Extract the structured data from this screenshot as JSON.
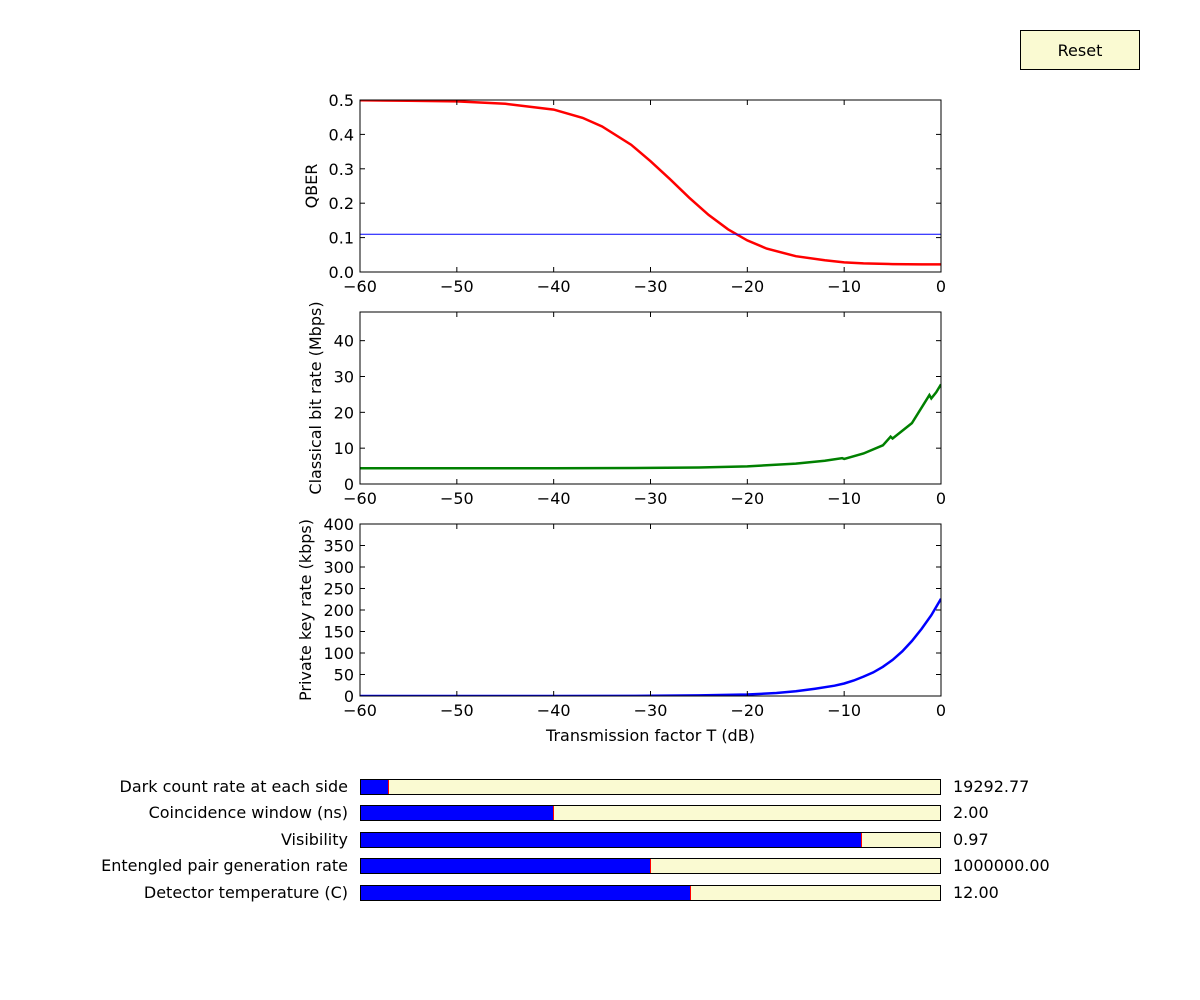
{
  "reset": {
    "label": "Reset"
  },
  "chart_data": [
    {
      "type": "line",
      "ylabel": "QBER",
      "xlim": [
        -60,
        0
      ],
      "ylim": [
        0,
        0.5
      ],
      "xticks": [
        -60,
        -50,
        -40,
        -30,
        -20,
        -10,
        0
      ],
      "yticks": [
        0.0,
        0.1,
        0.2,
        0.3,
        0.4,
        0.5
      ],
      "ytick_labels": [
        "0.0",
        "0.1",
        "0.2",
        "0.3",
        "0.4",
        "0.5"
      ],
      "series": [
        {
          "color": "#ff0000",
          "x": [
            -60,
            -55,
            -50,
            -45,
            -40,
            -37,
            -35,
            -32,
            -30,
            -28,
            -26,
            -24,
            -22,
            -20,
            -18,
            -15,
            -12,
            -10,
            -8,
            -5,
            -2,
            0
          ],
          "y": [
            0.499,
            0.498,
            0.496,
            0.489,
            0.472,
            0.448,
            0.423,
            0.37,
            0.322,
            0.27,
            0.216,
            0.166,
            0.124,
            0.092,
            0.068,
            0.046,
            0.034,
            0.028,
            0.025,
            0.023,
            0.022,
            0.022
          ]
        },
        {
          "color": "#0000ff",
          "x": [
            -60,
            0
          ],
          "y": [
            0.11,
            0.11
          ]
        }
      ]
    },
    {
      "type": "line",
      "ylabel": "Classical bit rate (Mbps)",
      "xlim": [
        -60,
        0
      ],
      "ylim": [
        0,
        48
      ],
      "xticks": [
        -60,
        -50,
        -40,
        -30,
        -20,
        -10,
        0
      ],
      "yticks": [
        0,
        10,
        20,
        30,
        40
      ],
      "ytick_labels": [
        "0",
        "10",
        "20",
        "30",
        "40"
      ],
      "series": [
        {
          "color": "#008000",
          "x": [
            -60,
            -50,
            -40,
            -30,
            -25,
            -20,
            -15,
            -12,
            -10.2,
            -10,
            -8,
            -6,
            -5.2,
            -5,
            -3,
            -1.2,
            -1,
            -0.5,
            0
          ],
          "y": [
            4.4,
            4.4,
            4.4,
            4.5,
            4.6,
            4.9,
            5.7,
            6.5,
            7.2,
            7.0,
            8.5,
            10.8,
            13.2,
            12.7,
            17.0,
            24.8,
            23.9,
            25.6,
            27.8
          ]
        }
      ]
    },
    {
      "type": "line",
      "ylabel": "Private key rate (kbps)",
      "xlabel": "Transmission factor T (dB)",
      "xlim": [
        -60,
        0
      ],
      "ylim": [
        0,
        400
      ],
      "xticks": [
        -60,
        -50,
        -40,
        -30,
        -20,
        -10,
        0
      ],
      "yticks": [
        0,
        50,
        100,
        150,
        200,
        250,
        300,
        350,
        400
      ],
      "ytick_labels": [
        "0",
        "50",
        "100",
        "150",
        "200",
        "250",
        "300",
        "350",
        "400"
      ],
      "series": [
        {
          "color": "#0000ff",
          "x": [
            -60,
            -40,
            -30,
            -25,
            -20,
            -17,
            -15,
            -13,
            -11,
            -10,
            -9,
            -8,
            -7,
            -6,
            -5,
            -4,
            -3,
            -2,
            -1,
            0
          ],
          "y": [
            0,
            0,
            0.5,
            1.5,
            3.5,
            7,
            11,
            17,
            24,
            29,
            36,
            45,
            55,
            68,
            84,
            104,
            128,
            156,
            188,
            226
          ]
        }
      ]
    }
  ],
  "sliders": [
    {
      "label": "Dark count rate at each side",
      "value": "19292.77",
      "fraction": 0.048
    },
    {
      "label": "Coincidence window (ns)",
      "value": "2.00",
      "fraction": 0.333
    },
    {
      "label": "Visibility",
      "value": "0.97",
      "fraction": 0.865
    },
    {
      "label": "Entengled pair generation rate",
      "value": "1000000.00",
      "fraction": 0.5
    },
    {
      "label": "Detector temperature (C)",
      "value": "12.00",
      "fraction": 0.57
    }
  ]
}
